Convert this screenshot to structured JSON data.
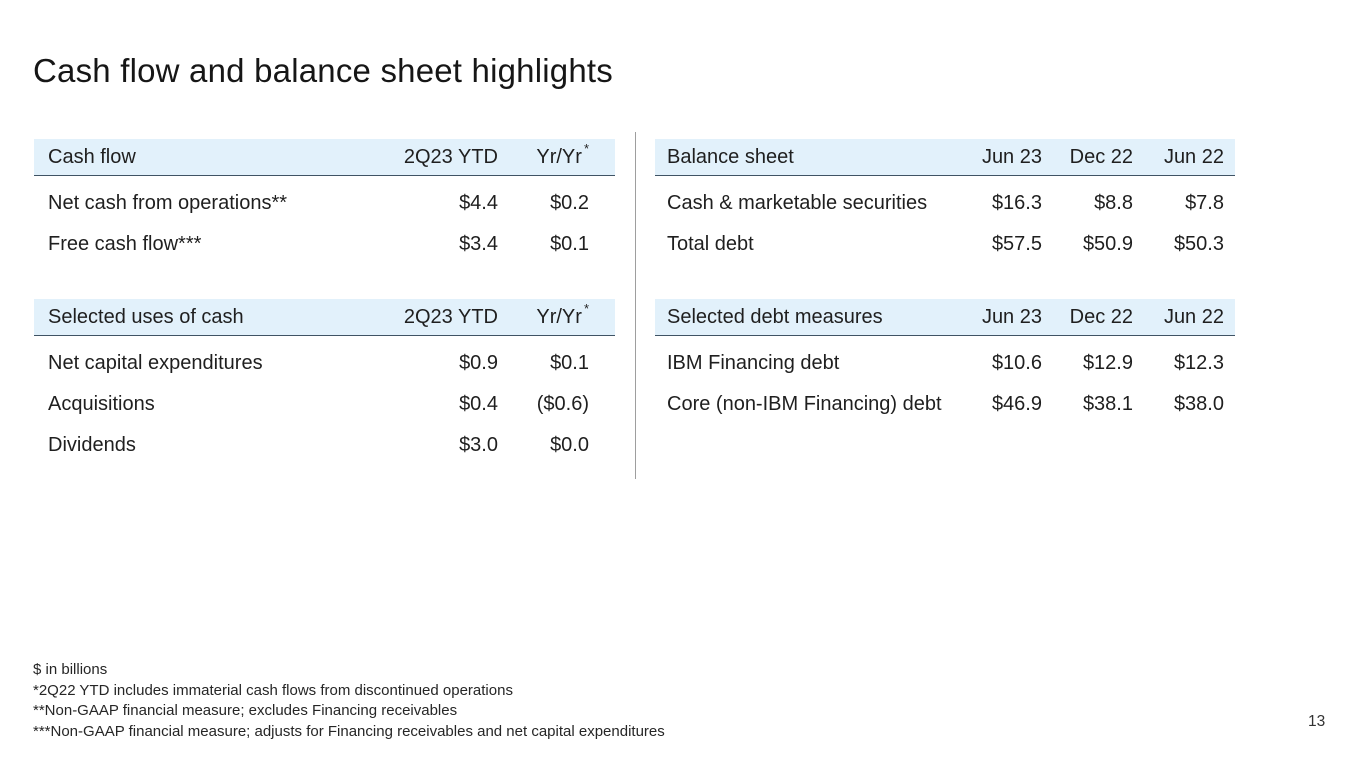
{
  "slide": {
    "title": "Cash flow and balance sheet highlights",
    "page_number": "13"
  },
  "colors": {
    "header_band_bg": "#e2f1fb",
    "header_band_border": "#3f5364",
    "divider": "#9e9e9e",
    "text": "#1f1f1f"
  },
  "tables": {
    "cash_flow": {
      "title": "Cash flow",
      "col1": "2Q23 YTD",
      "col2": "Yr/Yr",
      "col2_sup": "*",
      "rows": [
        {
          "label": "Net cash from operations**",
          "v1": "$4.4",
          "v2": "$0.2"
        },
        {
          "label": "Free cash flow***",
          "v1": "$3.4",
          "v2": "$0.1"
        }
      ]
    },
    "selected_uses": {
      "title": "Selected uses of cash",
      "col1": "2Q23 YTD",
      "col2": "Yr/Yr",
      "col2_sup": "*",
      "rows": [
        {
          "label": "Net capital expenditures",
          "v1": "$0.9",
          "v2": "$0.1"
        },
        {
          "label": "Acquisitions",
          "v1": "$0.4",
          "v2": "($0.6)"
        },
        {
          "label": "Dividends",
          "v1": "$3.0",
          "v2": "$0.0"
        }
      ]
    },
    "balance_sheet": {
      "title": "Balance sheet",
      "col1": "Jun 23",
      "col2": "Dec 22",
      "col3": "Jun 22",
      "rows": [
        {
          "label": "Cash & marketable securities",
          "v1": "$16.3",
          "v2": "$8.8",
          "v3": "$7.8"
        },
        {
          "label": "Total debt",
          "v1": "$57.5",
          "v2": "$50.9",
          "v3": "$50.3"
        }
      ]
    },
    "selected_debt": {
      "title": "Selected debt measures",
      "col1": "Jun 23",
      "col2": "Dec 22",
      "col3": "Jun 22",
      "rows": [
        {
          "label": "IBM Financing debt",
          "v1": "$10.6",
          "v2": "$12.9",
          "v3": "$12.3"
        },
        {
          "label": "Core (non-IBM Financing) debt",
          "v1": "$46.9",
          "v2": "$38.1",
          "v3": "$38.0"
        }
      ]
    }
  },
  "footnotes": [
    "$ in billions",
    "*2Q22 YTD includes immaterial cash flows from discontinued operations",
    "**Non-GAAP financial measure; excludes Financing receivables",
    "***Non-GAAP financial measure; adjusts for Financing receivables and net capital expenditures"
  ]
}
